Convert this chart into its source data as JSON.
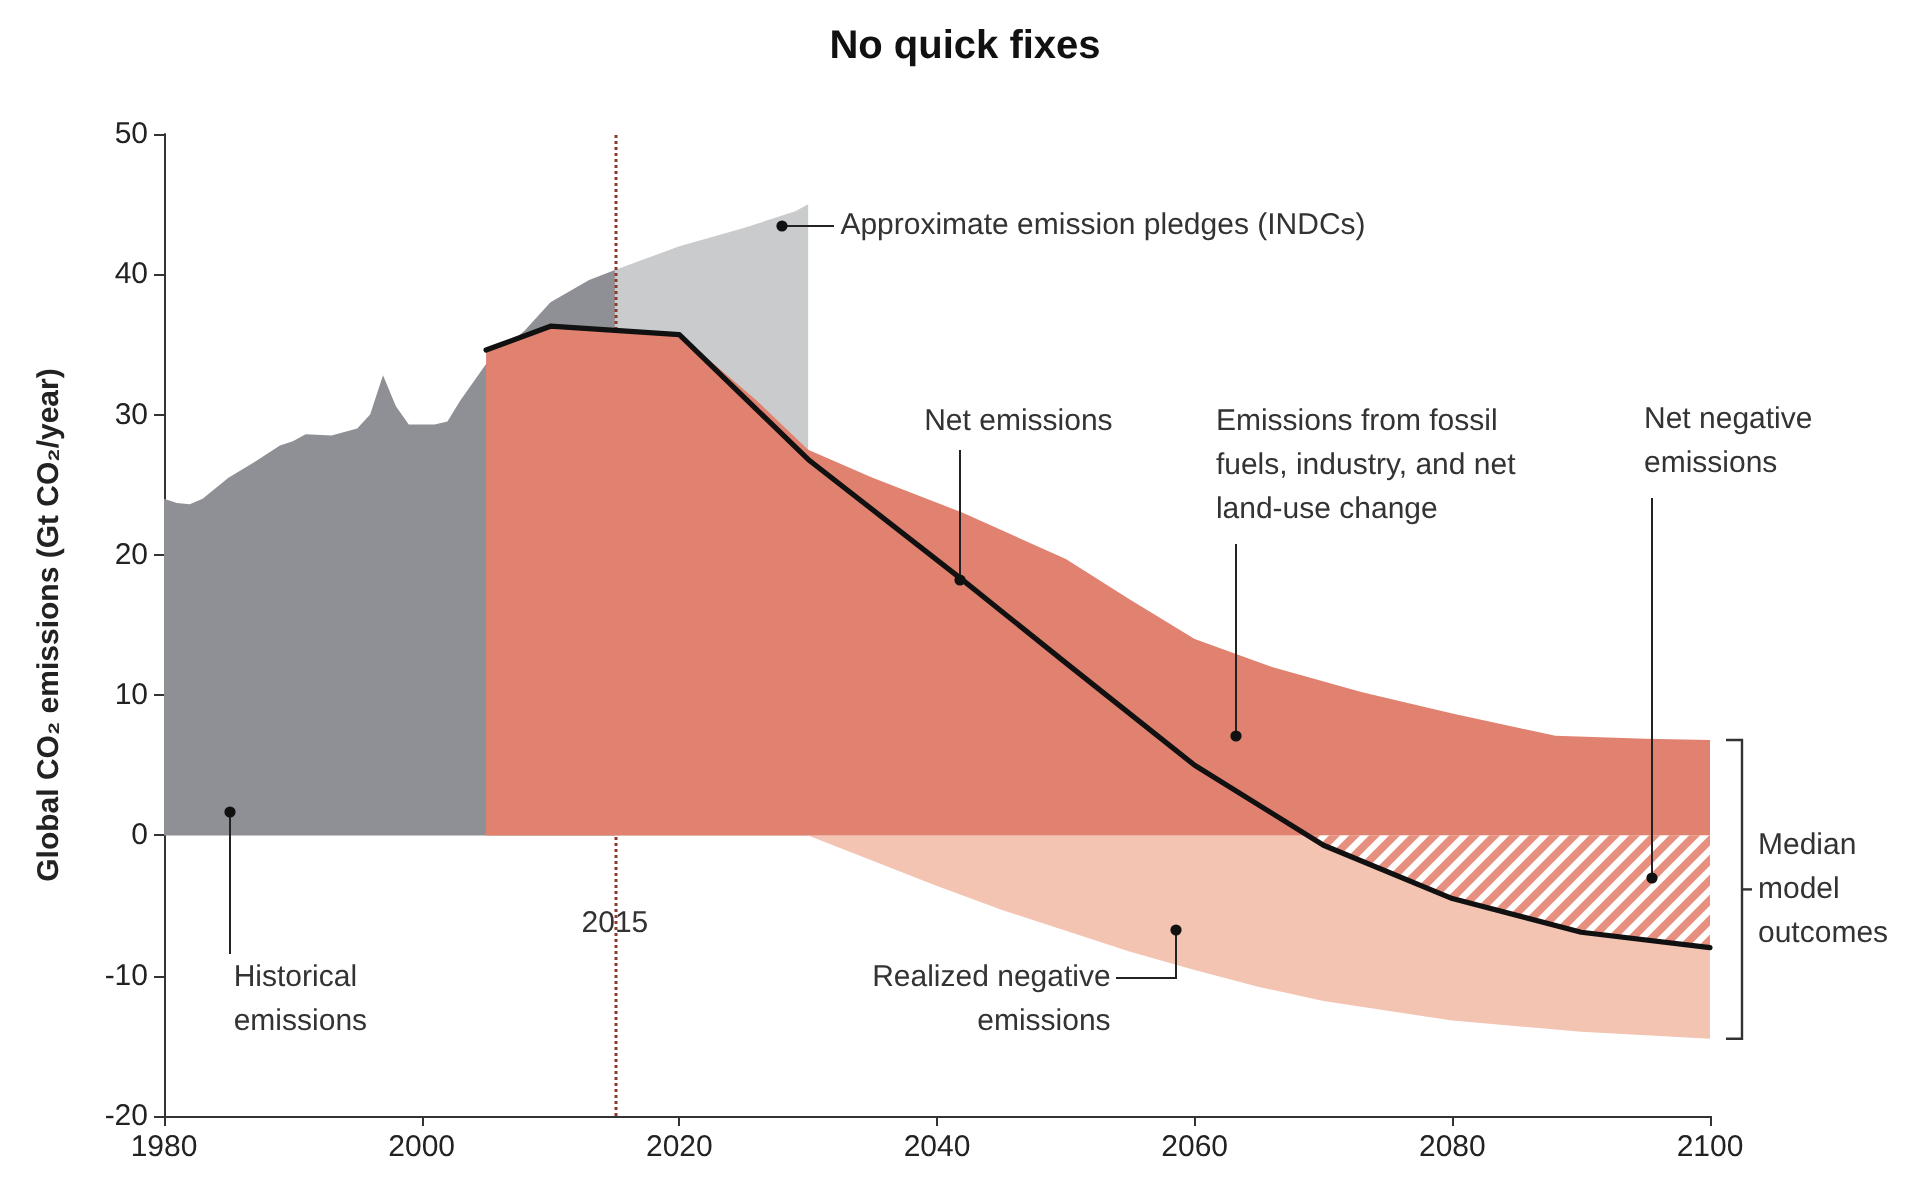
{
  "chart_data": {
    "type": "area",
    "title": "No quick fixes",
    "ylabel": "Global CO₂ emissions (Gt CO₂/year)",
    "xlim": [
      1980,
      2100
    ],
    "xticks": [
      1980,
      2000,
      2020,
      2040,
      2060,
      2080,
      2100
    ],
    "ylim": [
      -20,
      50
    ],
    "yticks": [
      -20,
      -10,
      0,
      10,
      20,
      30,
      40,
      50
    ],
    "grid": false,
    "marker": "none",
    "series": [
      {
        "type": "area",
        "color": "#c9cbcd",
        "x": [
          2015,
          2020,
          2025,
          2029,
          2030
        ],
        "values": [
          40.3,
          42,
          43.3,
          44.5,
          45
        ]
      },
      {
        "type": "area",
        "color": "#8f9095",
        "x": [
          1980,
          1981,
          1982,
          1983,
          1985,
          1987,
          1989,
          1990,
          1991,
          1993,
          1995,
          1996,
          1997,
          1998,
          1999,
          2001,
          2002,
          2003,
          2004,
          2005,
          2008,
          2010,
          2013,
          2015
        ],
        "values": [
          24,
          23.7,
          23.6,
          24,
          25.5,
          26.6,
          27.8,
          28.1,
          28.6,
          28.5,
          29,
          30,
          32.8,
          30.6,
          29.3,
          29.3,
          29.5,
          31,
          32.3,
          33.6,
          36,
          38,
          39.6,
          40.3
        ]
      },
      {
        "type": "area",
        "color": "#f4c4b3",
        "x": [
          2030,
          2035,
          2040,
          2045,
          2050,
          2055,
          2060,
          2065,
          2070,
          2080,
          2090,
          2100
        ],
        "values": [
          0,
          -1.8,
          -3.6,
          -5.3,
          -6.8,
          -8.3,
          -9.6,
          -10.8,
          -11.8,
          -13.2,
          -14,
          -14.5
        ]
      },
      {
        "type": "area",
        "color": "#e0826f",
        "x": [
          2005,
          2010,
          2020,
          2026,
          2030,
          2035,
          2042,
          2050,
          2055,
          2060,
          2066,
          2073,
          2080,
          2088,
          2095,
          2100
        ],
        "values": [
          34.6,
          36.3,
          35.7,
          31,
          27.5,
          25.5,
          23,
          19.7,
          16.8,
          14,
          12,
          10.2,
          8.7,
          7.1,
          6.9,
          6.8
        ]
      },
      {
        "type": "area",
        "color": "#e8907f",
        "x": [
          2068.8,
          2070,
          2080,
          2090,
          2100
        ],
        "values": [
          0,
          -0.7,
          -4.5,
          -6.9,
          -8
        ]
      },
      {
        "type": "line",
        "color": "#111111",
        "line_style": "solid",
        "x": [
          2005,
          2010,
          2020,
          2030,
          2042,
          2050,
          2060,
          2070,
          2080,
          2090,
          2100
        ],
        "values": [
          34.6,
          36.3,
          35.7,
          26.8,
          18.2,
          12.3,
          5,
          -0.7,
          -4.5,
          -6.9,
          -8
        ]
      }
    ],
    "ref_lines": [
      {
        "axis": "x",
        "value": 2015,
        "label": "2015",
        "color": "#8b3a2b",
        "line_style": "dotted"
      }
    ],
    "annotations": [
      {
        "text": "Approximate emission pledges (INDCs)",
        "x": 2028,
        "y": 43.5
      },
      {
        "text": "Net emissions",
        "x": 2041.8,
        "y": 18.2
      },
      {
        "text": "Emissions from fossil fuels, industry, and net land-use change",
        "x": 2063.2,
        "y": 7.1
      },
      {
        "text": "Net negative emissions",
        "x": 2095.5,
        "y": -3.1
      },
      {
        "text": "Realized negative emissions",
        "x": 2058.6,
        "y": -6.8
      },
      {
        "text": "Historical emissions",
        "x": 1985.1,
        "y": 1.6
      },
      "Median model outcomes"
    ]
  }
}
